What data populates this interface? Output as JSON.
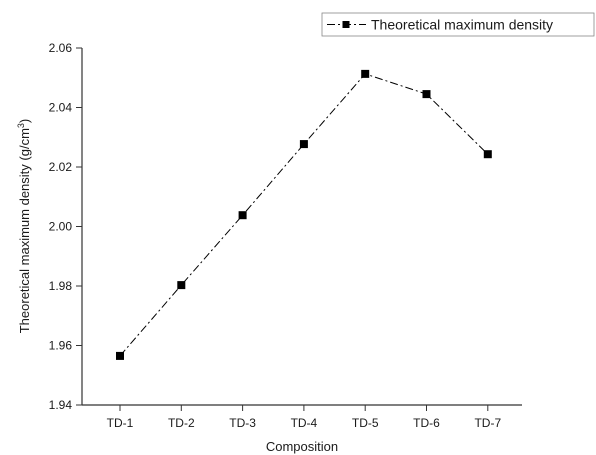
{
  "chart_data": {
    "type": "line",
    "categories": [
      "TD-1",
      "TD-2",
      "TD-3",
      "TD-4",
      "TD-5",
      "TD-6",
      "TD-7"
    ],
    "series": [
      {
        "name": "Theoretical maximum density",
        "values": [
          1.9565,
          1.9803,
          2.0038,
          2.0277,
          2.0513,
          2.0445,
          2.0243
        ],
        "color": "#000000",
        "line_style": "dash-dot",
        "marker": "square"
      }
    ],
    "xlabel": "Composition",
    "ylabel_main": "Theoretical maximum density (g/cm",
    "ylabel_sup": "3",
    "ylabel_end": ")",
    "ylim": [
      1.94,
      2.06
    ],
    "yticks": [
      "1.94",
      "1.96",
      "1.98",
      "2.00",
      "2.02",
      "2.04",
      "2.06"
    ],
    "grid": false,
    "legend_position": "top-right"
  }
}
